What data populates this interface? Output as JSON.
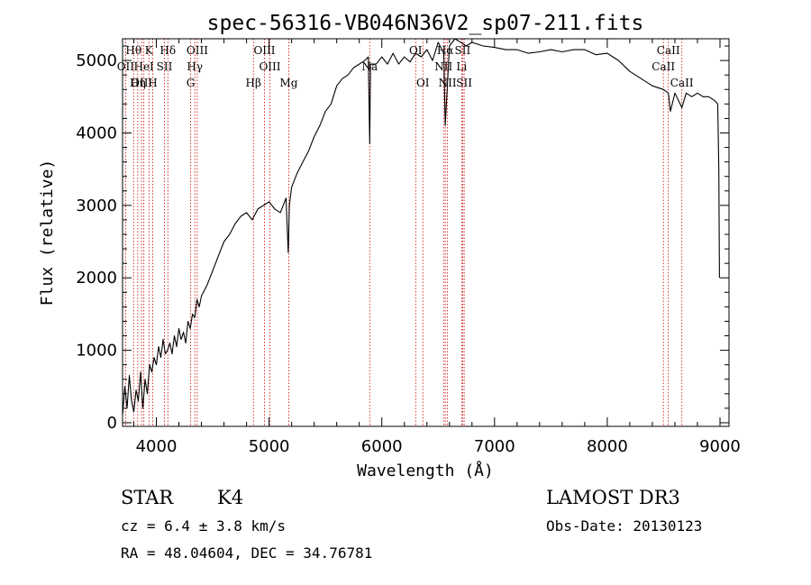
{
  "chart_data": {
    "type": "line",
    "title": "spec-56316-VB046N36V2_sp07-211.fits",
    "xlabel": "Wavelength (Å)",
    "ylabel": "Flux (relative)",
    "xlim": [
      3700,
      9080
    ],
    "ylim": [
      -50,
      5300
    ],
    "xticks": [
      4000,
      5000,
      6000,
      7000,
      8000,
      9000
    ],
    "yticks": [
      0,
      1000,
      2000,
      3000,
      4000,
      5000
    ],
    "line_color": "#000000",
    "marker_color": "#cc0000",
    "series": [
      {
        "name": "flux",
        "x": [
          3700,
          3720,
          3740,
          3760,
          3780,
          3800,
          3820,
          3840,
          3860,
          3880,
          3900,
          3920,
          3940,
          3960,
          3980,
          4000,
          4020,
          4040,
          4060,
          4080,
          4100,
          4120,
          4140,
          4160,
          4180,
          4200,
          4220,
          4240,
          4260,
          4280,
          4300,
          4320,
          4340,
          4360,
          4380,
          4400,
          4450,
          4500,
          4550,
          4600,
          4650,
          4700,
          4750,
          4800,
          4850,
          4900,
          4950,
          5000,
          5050,
          5100,
          5150,
          5170,
          5180,
          5200,
          5250,
          5300,
          5350,
          5400,
          5450,
          5500,
          5550,
          5600,
          5650,
          5700,
          5750,
          5800,
          5850,
          5880,
          5893,
          5900,
          5950,
          6000,
          6050,
          6100,
          6150,
          6200,
          6250,
          6300,
          6350,
          6400,
          6450,
          6500,
          6550,
          6563,
          6600,
          6650,
          6700,
          6750,
          6800,
          6900,
          7000,
          7100,
          7200,
          7300,
          7400,
          7500,
          7600,
          7700,
          7800,
          7900,
          8000,
          8100,
          8200,
          8300,
          8400,
          8500,
          8542,
          8560,
          8600,
          8662,
          8700,
          8750,
          8800,
          8850,
          8900,
          8950,
          8980,
          8990,
          8995
        ],
        "values": [
          100,
          500,
          200,
          650,
          300,
          150,
          450,
          300,
          700,
          200,
          600,
          400,
          800,
          700,
          900,
          800,
          1050,
          900,
          1150,
          950,
          1000,
          1100,
          950,
          1200,
          1050,
          1300,
          1150,
          1250,
          1100,
          1400,
          1300,
          1500,
          1450,
          1700,
          1600,
          1750,
          1900,
          2100,
          2300,
          2500,
          2600,
          2750,
          2850,
          2900,
          2800,
          2950,
          3000,
          3050,
          2950,
          2900,
          3100,
          2350,
          3000,
          3250,
          3450,
          3600,
          3750,
          3950,
          4100,
          4300,
          4400,
          4650,
          4750,
          4800,
          4900,
          4950,
          5000,
          5050,
          3850,
          4950,
          4950,
          5050,
          4950,
          5100,
          4950,
          5050,
          4980,
          5100,
          5050,
          5150,
          5000,
          5250,
          5100,
          4100,
          5200,
          5300,
          5250,
          5200,
          5250,
          5200,
          5180,
          5150,
          5150,
          5100,
          5120,
          5150,
          5120,
          5150,
          5150,
          5080,
          5100,
          5000,
          4850,
          4750,
          4650,
          4600,
          4550,
          4300,
          4550,
          4350,
          4550,
          4500,
          4550,
          4500,
          4500,
          4450,
          4400,
          3500,
          2000
        ]
      }
    ],
    "lines": [
      {
        "label": "Hθ",
        "x": 3798,
        "row": 0
      },
      {
        "label": "OII",
        "x": 3727,
        "row": 1
      },
      {
        "label": "OIII",
        "x": 3869,
        "row": 2
      },
      {
        "label": "K",
        "x": 3934,
        "row": 0
      },
      {
        "label": "HeI",
        "x": 3889,
        "row": 1
      },
      {
        "label": "Hη",
        "x": 3835,
        "row": 2
      },
      {
        "label": "Hδ",
        "x": 4102,
        "row": 0
      },
      {
        "label": "SII",
        "x": 4072,
        "row": 1
      },
      {
        "label": "H",
        "x": 3968,
        "row": 2
      },
      {
        "label": "OIII",
        "x": 4363,
        "row": 0
      },
      {
        "label": "Hγ",
        "x": 4341,
        "row": 1
      },
      {
        "label": "G",
        "x": 4304,
        "row": 2
      },
      {
        "label": "OIII",
        "x": 4959,
        "row": 0
      },
      {
        "label": "OIII",
        "x": 5007,
        "row": 1
      },
      {
        "label": "Hβ",
        "x": 4861,
        "row": 2
      },
      {
        "label": "Mg",
        "x": 5175,
        "row": 2
      },
      {
        "label": "Na",
        "x": 5893,
        "row": 1
      },
      {
        "label": "OI",
        "x": 6300,
        "row": 0
      },
      {
        "label": "OI",
        "x": 6364,
        "row": 2
      },
      {
        "label": "Hα",
        "x": 6563,
        "row": 0
      },
      {
        "label": "SII",
        "x": 6717,
        "row": 0
      },
      {
        "label": "NII",
        "x": 6548,
        "row": 1
      },
      {
        "label": "Li",
        "x": 6708,
        "row": 1
      },
      {
        "label": "NII",
        "x": 6583,
        "row": 2
      },
      {
        "label": "SII",
        "x": 6731,
        "row": 2
      },
      {
        "label": "CaII",
        "x": 8542,
        "row": 0
      },
      {
        "label": "CaII",
        "x": 8498,
        "row": 1
      },
      {
        "label": "CaII",
        "x": 8662,
        "row": 2
      }
    ]
  },
  "info": {
    "object_class": "STAR",
    "subclass": "K4",
    "survey": "LAMOST DR3",
    "redshift": "cz = 6.4 ± 3.8 km/s",
    "obs_date": "Obs-Date: 20130123",
    "coords": "RA =  48.04604, DEC =  34.76781"
  }
}
